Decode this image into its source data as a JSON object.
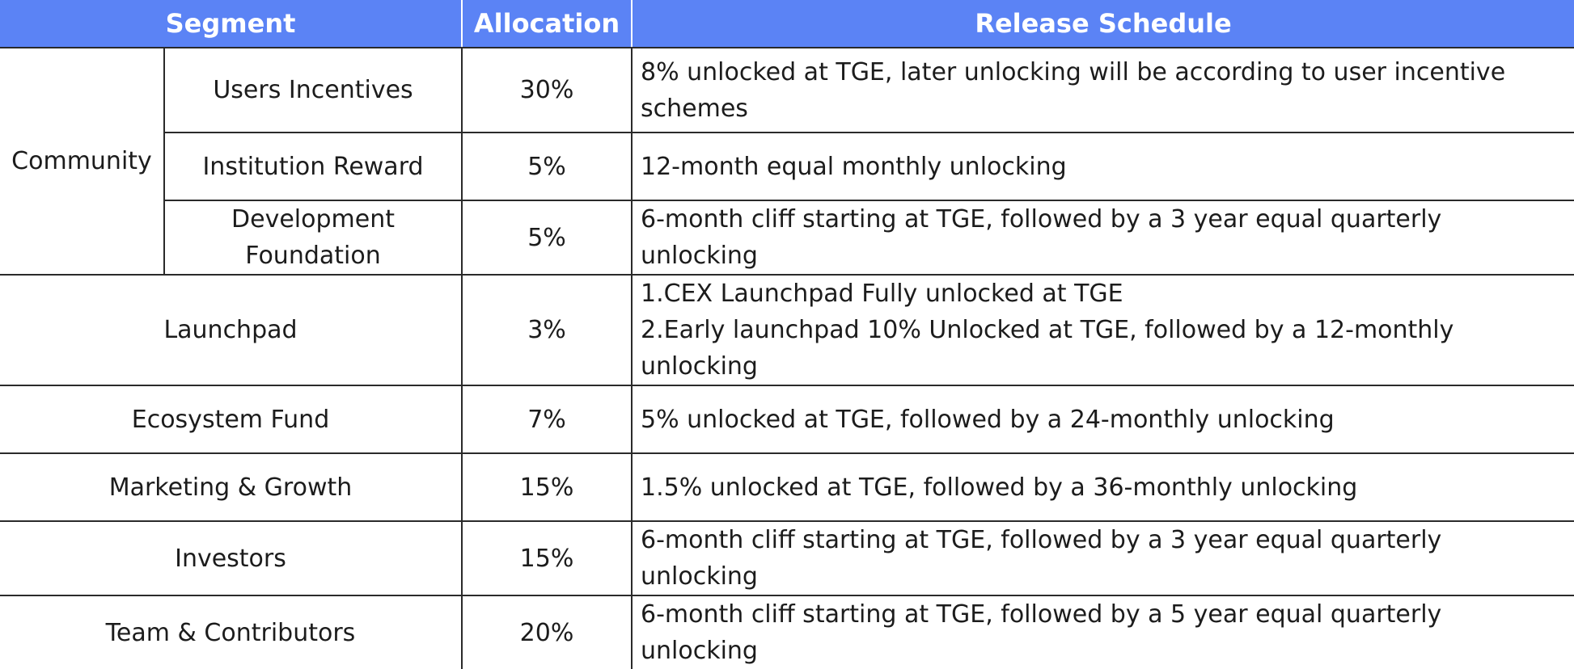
{
  "header": {
    "segment": "Segment",
    "allocation": "Allocation",
    "release": "Release Schedule"
  },
  "colors": {
    "header_bg": "#5b83f5",
    "header_text": "#ffffff",
    "grid": "#2a2a2a"
  },
  "community": {
    "label": "Community",
    "rows": [
      {
        "name": "Users Incentives",
        "allocation": "30%",
        "release": "8% unlocked at TGE, later unlocking will be according to user incentive schemes"
      },
      {
        "name": "Institution Reward",
        "allocation": "5%",
        "release": "12-month equal monthly unlocking"
      },
      {
        "name": "Development Foundation",
        "allocation": "5%",
        "release": "6-month cliff starting at TGE, followed by a 3 year equal quarterly unlocking"
      }
    ]
  },
  "rows": [
    {
      "name": "Launchpad",
      "allocation": "3%",
      "release_lines": [
        "1.CEX Launchpad Fully unlocked at TGE",
        "2.Early launchpad 10% Unlocked at TGE, followed by a 12-monthly unlocking"
      ]
    },
    {
      "name": "Ecosystem Fund",
      "allocation": "7%",
      "release": "5% unlocked at TGE, followed by a 24-monthly unlocking"
    },
    {
      "name": "Marketing & Growth",
      "allocation": "15%",
      "release": "1.5% unlocked at TGE, followed by a 36-monthly unlocking"
    },
    {
      "name": "Investors",
      "allocation": "15%",
      "release": "6-month cliff starting at TGE, followed by a 3 year equal quarterly unlocking"
    },
    {
      "name": "Team & Contributors",
      "allocation": "20%",
      "release": "6-month cliff starting at TGE, followed by a 5 year equal quarterly unlocking"
    }
  ]
}
